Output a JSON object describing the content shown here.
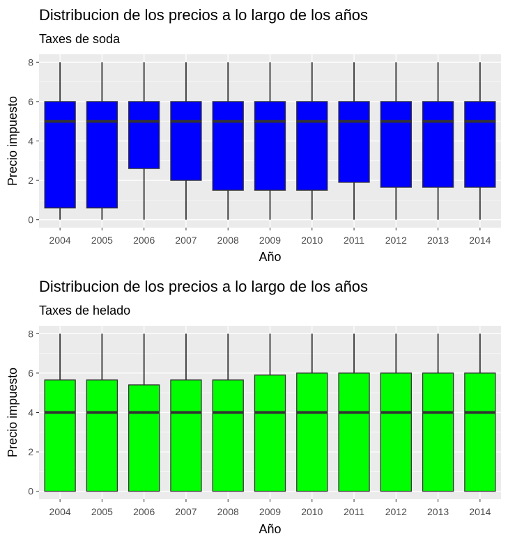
{
  "chart_data": [
    {
      "type": "boxplot",
      "title": "Distribucion de los precios a lo largo de los años",
      "subtitle": "Taxes de soda",
      "xlabel": "Año",
      "ylabel": "Precio impuesto",
      "ylim": [
        -0.4,
        8.4
      ],
      "yticks": [
        "0",
        "2",
        "4",
        "6",
        "8"
      ],
      "grid": true,
      "fill": "#0000ff",
      "categories": [
        "2004",
        "2005",
        "2006",
        "2007",
        "2008",
        "2009",
        "2010",
        "2011",
        "2012",
        "2013",
        "2014"
      ],
      "boxes": [
        {
          "min": 0,
          "q1": 0.6,
          "median": 5,
          "q3": 6,
          "max": 8
        },
        {
          "min": 0,
          "q1": 0.6,
          "median": 5,
          "q3": 6,
          "max": 8
        },
        {
          "min": 0,
          "q1": 2.6,
          "median": 5,
          "q3": 6,
          "max": 8
        },
        {
          "min": 0,
          "q1": 2.0,
          "median": 5,
          "q3": 6,
          "max": 8
        },
        {
          "min": 0,
          "q1": 1.5,
          "median": 5,
          "q3": 6,
          "max": 8
        },
        {
          "min": 0,
          "q1": 1.5,
          "median": 5,
          "q3": 6,
          "max": 8
        },
        {
          "min": 0,
          "q1": 1.5,
          "median": 5,
          "q3": 6,
          "max": 8
        },
        {
          "min": 0,
          "q1": 1.9,
          "median": 5,
          "q3": 6,
          "max": 8
        },
        {
          "min": 0,
          "q1": 1.65,
          "median": 5,
          "q3": 6,
          "max": 8
        },
        {
          "min": 0,
          "q1": 1.65,
          "median": 5,
          "q3": 6,
          "max": 8
        },
        {
          "min": 0,
          "q1": 1.65,
          "median": 5,
          "q3": 6,
          "max": 8
        }
      ]
    },
    {
      "type": "boxplot",
      "title": "Distribucion de los precios a lo largo de los años",
      "subtitle": "Taxes de helado",
      "xlabel": "Año",
      "ylabel": "Precio impuesto",
      "ylim": [
        -0.4,
        8.4
      ],
      "yticks": [
        "0",
        "2",
        "4",
        "6",
        "8"
      ],
      "grid": true,
      "fill": "#00ff00",
      "categories": [
        "2004",
        "2005",
        "2006",
        "2007",
        "2008",
        "2009",
        "2010",
        "2011",
        "2012",
        "2013",
        "2014"
      ],
      "boxes": [
        {
          "min": 0,
          "q1": 0,
          "median": 4,
          "q3": 5.65,
          "max": 8
        },
        {
          "min": 0,
          "q1": 0,
          "median": 4,
          "q3": 5.65,
          "max": 8
        },
        {
          "min": 0,
          "q1": 0,
          "median": 4,
          "q3": 5.4,
          "max": 8
        },
        {
          "min": 0,
          "q1": 0,
          "median": 4,
          "q3": 5.65,
          "max": 8
        },
        {
          "min": 0,
          "q1": 0,
          "median": 4,
          "q3": 5.65,
          "max": 8
        },
        {
          "min": 0,
          "q1": 0,
          "median": 4,
          "q3": 5.9,
          "max": 8
        },
        {
          "min": 0,
          "q1": 0,
          "median": 4,
          "q3": 6,
          "max": 8
        },
        {
          "min": 0,
          "q1": 0,
          "median": 4,
          "q3": 6,
          "max": 8
        },
        {
          "min": 0,
          "q1": 0,
          "median": 4,
          "q3": 6,
          "max": 8
        },
        {
          "min": 0,
          "q1": 0,
          "median": 4,
          "q3": 6,
          "max": 8
        },
        {
          "min": 0,
          "q1": 0,
          "median": 4,
          "q3": 6,
          "max": 8
        }
      ]
    }
  ]
}
